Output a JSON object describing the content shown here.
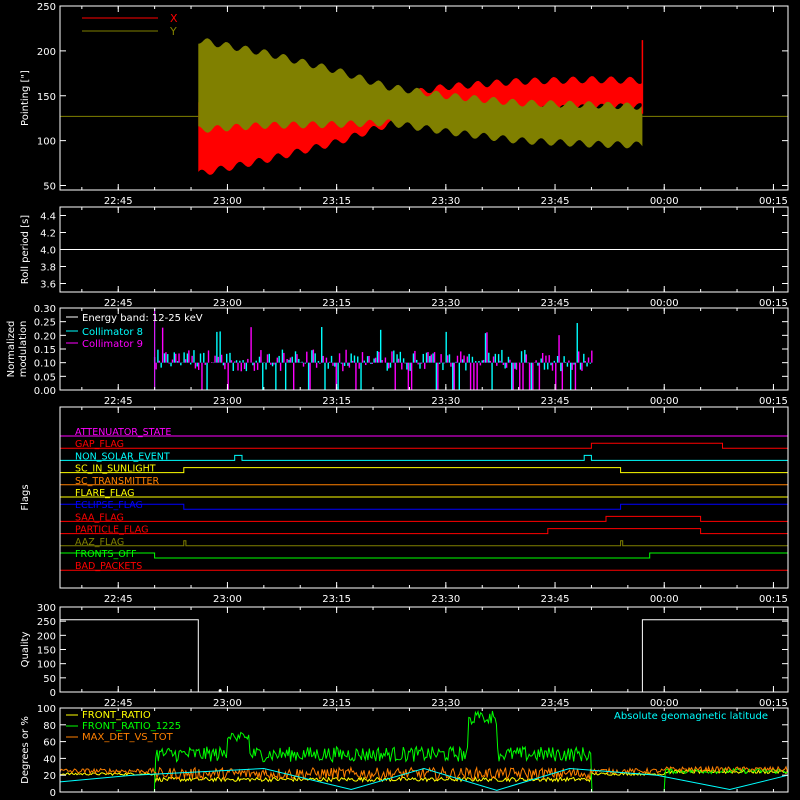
{
  "chart_data": [
    {
      "id": "pointing",
      "type": "area",
      "ylabel": "Pointing [\"]",
      "ylim": [
        45,
        250
      ],
      "yticks": [
        50,
        100,
        150,
        200,
        250
      ],
      "xticks": [
        "22:45",
        "23:00",
        "23:15",
        "23:30",
        "23:45",
        "00:00",
        "00:15"
      ],
      "legend_position": "top-left",
      "baseline": 127,
      "active_window": [
        "22:56",
        "23:57"
      ],
      "series": [
        {
          "name": "X",
          "color": "#ff0000",
          "profile": [
            {
              "t": "22:56",
              "min": 63,
              "max": 145
            },
            {
              "t": "23:05",
              "min": 78,
              "max": 135
            },
            {
              "t": "23:15",
              "min": 98,
              "max": 140
            },
            {
              "t": "23:22",
              "min": 118,
              "max": 148
            },
            {
              "t": "23:30",
              "min": 128,
              "max": 160
            },
            {
              "t": "23:40",
              "min": 134,
              "max": 166
            },
            {
              "t": "23:50",
              "min": 137,
              "max": 168
            },
            {
              "t": "23:57",
              "min": 138,
              "max": 167
            }
          ],
          "end_spike": 212
        },
        {
          "name": "Y",
          "color": "#808000",
          "profile": [
            {
              "t": "22:56",
              "min": 112,
              "max": 212
            },
            {
              "t": "23:05",
              "min": 117,
              "max": 198
            },
            {
              "t": "23:15",
              "min": 118,
              "max": 178
            },
            {
              "t": "23:22",
              "min": 120,
              "max": 160
            },
            {
              "t": "23:30",
              "min": 110,
              "max": 150
            },
            {
              "t": "23:40",
              "min": 100,
              "max": 142
            },
            {
              "t": "23:50",
              "min": 96,
              "max": 140
            },
            {
              "t": "23:57",
              "min": 95,
              "max": 138
            }
          ]
        }
      ]
    },
    {
      "id": "roll",
      "type": "line",
      "ylabel": "Roll period [s]",
      "ylim": [
        3.5,
        4.5
      ],
      "yticks": [
        3.6,
        3.8,
        4.0,
        4.2,
        4.4
      ],
      "xticks": [
        "22:45",
        "23:00",
        "23:15",
        "23:30",
        "23:45",
        "00:00",
        "00:15"
      ],
      "series": [
        {
          "name": "",
          "color": "#ffffff",
          "x": [
            "22:37",
            "00:17"
          ],
          "y": [
            4.0,
            4.0
          ]
        }
      ]
    },
    {
      "id": "modulation",
      "type": "bar",
      "ylabel": "Normalized modulation",
      "ylim": [
        0,
        0.3
      ],
      "yticks": [
        0.0,
        0.05,
        0.1,
        0.15,
        0.2,
        0.25,
        0.3
      ],
      "xticks": [
        "22:45",
        "23:00",
        "23:15",
        "23:30",
        "23:45",
        "00:00",
        "00:15"
      ],
      "annotation": "Energy band: 12-25 keV",
      "legend_position": "top-left",
      "active_window": [
        "22:50",
        "23:50"
      ],
      "series": [
        {
          "name": "Collimator 8",
          "color": "#00ffff",
          "typical": 0.1
        },
        {
          "name": "Collimator 9",
          "color": "#ff00ff",
          "typical": 0.1
        }
      ]
    },
    {
      "id": "flags",
      "type": "line",
      "ylabel": "Flags",
      "xticks": [
        "22:45",
        "23:00",
        "23:15",
        "23:30",
        "23:45",
        "00:00",
        "00:15"
      ],
      "flags": [
        {
          "name": "ATTENUATOR_STATE",
          "color": "#ff00ff",
          "steps": []
        },
        {
          "name": "GAP_FLAG",
          "color": "#ff0000",
          "steps": [
            [
              "23:50",
              "00:08"
            ]
          ]
        },
        {
          "name": "NON_SOLAR_EVENT",
          "color": "#00ffff",
          "steps": [
            [
              "23:01",
              "23:02"
            ],
            [
              "23:49",
              "23:50"
            ]
          ]
        },
        {
          "name": "SC_IN_SUNLIGHT",
          "color": "#ffff00",
          "steps": [
            [
              "22:54",
              "23:54"
            ]
          ]
        },
        {
          "name": "SC_TRANSMITTER",
          "color": "#ff8000",
          "steps": []
        },
        {
          "name": "FLARE_FLAG",
          "color": "#ffff00",
          "steps": []
        },
        {
          "name": "ECLIPSE_FLAG",
          "color": "#0000ff",
          "steps": [
            [
              "22:37",
              "22:54"
            ],
            [
              "23:54",
              "00:17"
            ]
          ]
        },
        {
          "name": "SAA_FLAG",
          "color": "#ff0000",
          "steps": [
            [
              "23:52",
              "00:05"
            ]
          ]
        },
        {
          "name": "PARTICLE_FLAG",
          "color": "#ff0000",
          "steps": [
            [
              "23:44",
              "00:05"
            ]
          ]
        },
        {
          "name": "AAZ_FLAG",
          "color": "#808000",
          "steps": [
            [
              "22:54",
              "22:54.3"
            ],
            [
              "23:54",
              "23:54.3"
            ]
          ]
        },
        {
          "name": "FRONTS_OFF",
          "color": "#00ff00",
          "steps": [
            [
              "22:37",
              "22:50"
            ],
            [
              "23:58",
              "00:17"
            ]
          ]
        },
        {
          "name": "BAD_PACKETS",
          "color": "#ff0000",
          "steps": []
        }
      ]
    },
    {
      "id": "quality",
      "type": "line",
      "ylabel": "Quality",
      "ylim": [
        0,
        300
      ],
      "yticks": [
        0,
        50,
        100,
        150,
        200,
        250,
        300
      ],
      "xticks": [
        "22:45",
        "23:00",
        "23:15",
        "23:30",
        "23:45",
        "00:00",
        "00:15"
      ],
      "series": [
        {
          "name": "",
          "color": "#ffffff",
          "x": [
            "22:37",
            "22:56",
            "22:56",
            "23:57",
            "23:57",
            "00:17"
          ],
          "y": [
            255,
            255,
            0,
            0,
            255,
            255
          ]
        }
      ]
    },
    {
      "id": "ratios",
      "type": "line",
      "ylabel": "Degrees or %",
      "ylim": [
        0,
        100
      ],
      "yticks": [
        0,
        20,
        40,
        60,
        80,
        100
      ],
      "annotation": "Absolute geomagnetic latitude",
      "annotation_color": "#00ffff",
      "legend_position": "top-left",
      "series": [
        {
          "name": "FRONT_RATIO",
          "color": "#ffff00",
          "typical": 15
        },
        {
          "name": "FRONT_RATIO_1225",
          "color": "#00ff00",
          "typical": 45
        },
        {
          "name": "MAX_DET_VS_TOT",
          "color": "#ff8000",
          "typical": 22
        }
      ],
      "latitude": {
        "color": "#00ffff",
        "x": [
          "22:37",
          "22:47",
          "23:05",
          "23:17",
          "23:27",
          "23:37",
          "23:47",
          "23:59",
          "00:09",
          "00:17"
        ],
        "y": [
          12,
          20,
          28,
          3,
          28,
          2,
          28,
          20,
          3,
          20
        ]
      }
    }
  ]
}
